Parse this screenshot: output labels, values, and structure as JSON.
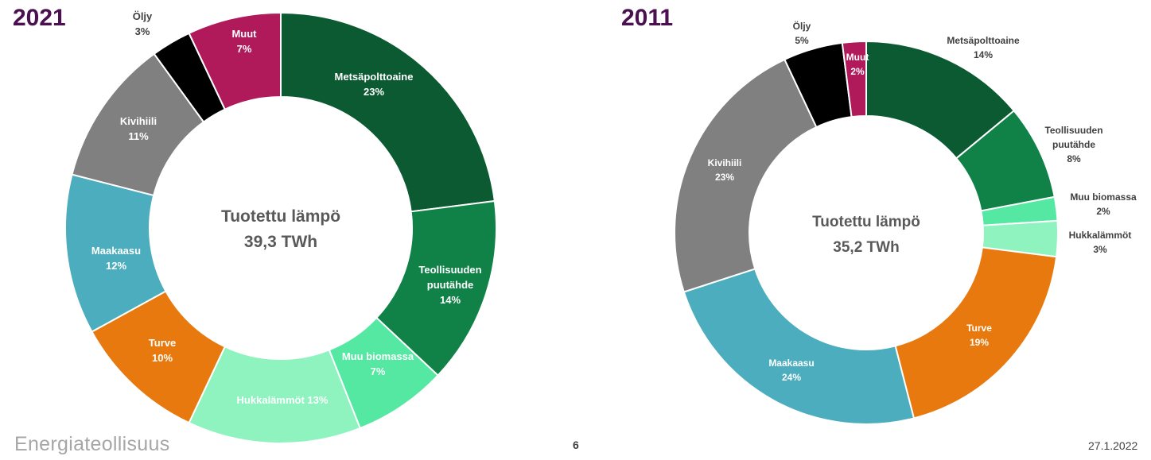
{
  "chart_data": [
    {
      "type": "pie",
      "donut": true,
      "year": "2021",
      "center_title": "Tuotettu lämpö",
      "center_value": "39,3 TWh",
      "slices": [
        {
          "label": "Metsäpolttoaine",
          "value": 23,
          "value_label": "23%",
          "color": "#0b5a32"
        },
        {
          "label": "Teollisuuden puutähde",
          "value": 14,
          "value_label": "14%",
          "color": "#108248"
        },
        {
          "label": "Muu biomassa",
          "value": 7,
          "value_label": "7%",
          "color": "#55e8a2"
        },
        {
          "label": "Hukkalämmöt",
          "value": 13,
          "value_label": "13%",
          "color": "#8ff3c0"
        },
        {
          "label": "Turve",
          "value": 10,
          "value_label": "10%",
          "color": "#e8790f"
        },
        {
          "label": "Maakaasu",
          "value": 12,
          "value_label": "12%",
          "color": "#4badbd"
        },
        {
          "label": "Kivihiili",
          "value": 11,
          "value_label": "11%",
          "color": "#808080"
        },
        {
          "label": "Öljy",
          "value": 3,
          "value_label": "3%",
          "color": "#000000"
        },
        {
          "label": "Muut",
          "value": 7,
          "value_label": "7%",
          "color": "#b01a5b"
        }
      ]
    },
    {
      "type": "pie",
      "donut": true,
      "year": "2011",
      "center_title": "Tuotettu lämpö",
      "center_value": "35,2 TWh",
      "slices": [
        {
          "label": "Metsäpolttoaine",
          "value": 14,
          "value_label": "14%",
          "color": "#0b5a32"
        },
        {
          "label": "Teollisuuden puutähde",
          "value": 8,
          "value_label": "8%",
          "color": "#108248"
        },
        {
          "label": "Muu biomassa",
          "value": 2,
          "value_label": "2%",
          "color": "#55e8a2"
        },
        {
          "label": "Hukkalämmöt",
          "value": 3,
          "value_label": "3%",
          "color": "#8ff3c0"
        },
        {
          "label": "Turve",
          "value": 19,
          "value_label": "19%",
          "color": "#e8790f"
        },
        {
          "label": "Maakaasu",
          "value": 24,
          "value_label": "24%",
          "color": "#4badbd"
        },
        {
          "label": "Kivihiili",
          "value": 23,
          "value_label": "23%",
          "color": "#808080"
        },
        {
          "label": "Öljy",
          "value": 5,
          "value_label": "5%",
          "color": "#000000"
        },
        {
          "label": "Muut",
          "value": 2,
          "value_label": "2%",
          "color": "#b01a5b"
        }
      ]
    }
  ],
  "footer": {
    "logo": "Energiateollisuus",
    "page": "6",
    "date": "27.1.2022"
  }
}
